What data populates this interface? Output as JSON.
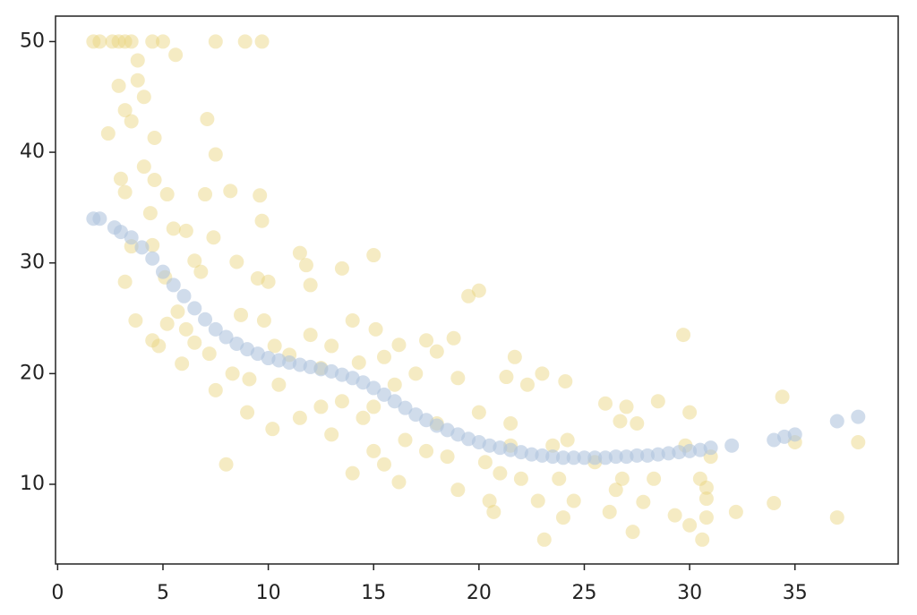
{
  "chart_data": {
    "type": "scatter",
    "xlim": [
      -0.1,
      39.9
    ],
    "ylim": [
      2.8,
      52.3
    ],
    "xticks": [
      0,
      5,
      10,
      15,
      20,
      25,
      30,
      35
    ],
    "yticks": [
      10,
      20,
      30,
      40,
      50
    ],
    "grid": false,
    "series": [
      {
        "color": "#e8d27a",
        "x": [
          1.7,
          2.0,
          2.6,
          2.9,
          3.2,
          3.5,
          4.5,
          5.0,
          7.5,
          8.9,
          9.7,
          5.6,
          3.8,
          2.9,
          3.8,
          4.1,
          3.2,
          3.5,
          2.4,
          4.6,
          7.1,
          7.5,
          4.1,
          3.0,
          3.2,
          4.6,
          5.2,
          7.0,
          8.2,
          9.6,
          9.7,
          4.4,
          5.5,
          6.1,
          7.4,
          3.5,
          4.5,
          6.5,
          8.5,
          9.5,
          10,
          11.5,
          11.8,
          12,
          13.5,
          15,
          20,
          19.5,
          3.2,
          5.1,
          6.8,
          3.7,
          4.5,
          5.2,
          5.7,
          6.1,
          6.5,
          7.2,
          5.9,
          4.8,
          8.7,
          9.8,
          10.3,
          8.3,
          9.1,
          10.5,
          11,
          12,
          12.5,
          13,
          14,
          14.3,
          15.1,
          15.5,
          16.2,
          17.5,
          18,
          18.8,
          17,
          19,
          16,
          15,
          14.5,
          13.5,
          12.5,
          11.5,
          10.2,
          8,
          9,
          7.5,
          13,
          14,
          15,
          15.5,
          16.2,
          16.5,
          17.5,
          18,
          18.5,
          19,
          20,
          20.3,
          20.5,
          20.7,
          21,
          21.5,
          21.5,
          21.7,
          21.3,
          22,
          22.3,
          22.8,
          23,
          23.1,
          23.5,
          23.8,
          24,
          24.1,
          24.2,
          24.5,
          25.5,
          26,
          26.2,
          26.5,
          26.8,
          26.7,
          27,
          27.3,
          27.5,
          27.8,
          28.3,
          28.5,
          29.3,
          29.7,
          29.8,
          30,
          30,
          30.5,
          30.6,
          30.8,
          30.8,
          30.8,
          31,
          32.2,
          34,
          34.4,
          35,
          37,
          38
        ],
        "values": [
          50,
          50,
          50,
          50,
          50,
          50,
          50,
          50,
          50,
          50,
          50,
          48.8,
          48.3,
          46,
          46.5,
          45,
          43.8,
          42.8,
          41.7,
          41.3,
          43,
          39.8,
          38.7,
          37.6,
          36.4,
          37.5,
          36.2,
          36.2,
          36.5,
          36.1,
          33.8,
          34.5,
          33.1,
          32.9,
          32.3,
          31.5,
          31.6,
          30.2,
          30.1,
          28.6,
          28.3,
          30.9,
          29.8,
          28,
          29.5,
          30.7,
          27.5,
          27,
          28.3,
          28.7,
          29.2,
          24.8,
          23,
          24.5,
          25.6,
          24,
          22.8,
          21.8,
          20.9,
          22.5,
          25.3,
          24.8,
          22.5,
          20,
          19.5,
          19,
          21.7,
          23.5,
          20.5,
          22.5,
          24.8,
          21,
          24,
          21.5,
          22.6,
          23,
          22,
          23.2,
          20,
          19.6,
          19,
          17,
          16,
          17.5,
          17,
          16,
          15,
          11.8,
          16.5,
          18.5,
          14.5,
          11,
          13,
          11.8,
          10.2,
          14,
          13,
          15.5,
          12.5,
          9.5,
          16.5,
          12,
          8.5,
          7.5,
          11,
          13.5,
          15.5,
          21.5,
          19.7,
          10.5,
          19,
          8.5,
          20,
          5,
          13.5,
          10.5,
          7,
          19.3,
          14,
          8.5,
          12,
          17.3,
          7.5,
          9.5,
          10.5,
          15.7,
          17,
          5.7,
          15.5,
          8.4,
          10.5,
          17.5,
          7.2,
          23.5,
          13.5,
          16.5,
          6.3,
          10.5,
          5,
          7,
          8.7,
          9.7,
          12.5,
          7.5,
          8.3,
          17.9,
          13.8,
          7,
          13.8
        ]
      },
      {
        "color": "#b0c4de",
        "x": [
          1.7,
          2,
          2.7,
          3,
          3.5,
          4,
          4.5,
          5,
          5.5,
          6,
          6.5,
          7,
          7.5,
          8,
          8.5,
          9,
          9.5,
          10,
          10.5,
          11,
          11.5,
          12,
          12.5,
          13,
          13.5,
          14,
          14.5,
          15,
          15.5,
          16,
          16.5,
          17,
          17.5,
          18,
          18.5,
          19,
          19.5,
          20,
          20.5,
          21,
          21.5,
          22,
          22.5,
          23,
          23.5,
          24,
          24.5,
          25,
          25.5,
          26,
          26.5,
          27,
          27.5,
          28,
          28.5,
          29,
          29.5,
          30,
          30.5,
          31,
          32,
          34,
          34.5,
          35,
          37,
          38
        ],
        "values": [
          34,
          34,
          33.2,
          32.8,
          32.3,
          31.4,
          30.4,
          29.2,
          28,
          27,
          25.9,
          24.9,
          24,
          23.3,
          22.7,
          22.2,
          21.8,
          21.4,
          21.2,
          21,
          20.8,
          20.6,
          20.4,
          20.2,
          19.9,
          19.6,
          19.2,
          18.7,
          18.1,
          17.5,
          16.9,
          16.3,
          15.8,
          15.3,
          14.9,
          14.5,
          14.1,
          13.8,
          13.5,
          13.3,
          13.1,
          12.9,
          12.7,
          12.6,
          12.5,
          12.4,
          12.4,
          12.4,
          12.4,
          12.4,
          12.5,
          12.5,
          12.6,
          12.6,
          12.7,
          12.8,
          12.9,
          13.0,
          13.1,
          13.3,
          13.5,
          14.0,
          14.3,
          14.5,
          15.7,
          16.1
        ]
      }
    ]
  }
}
